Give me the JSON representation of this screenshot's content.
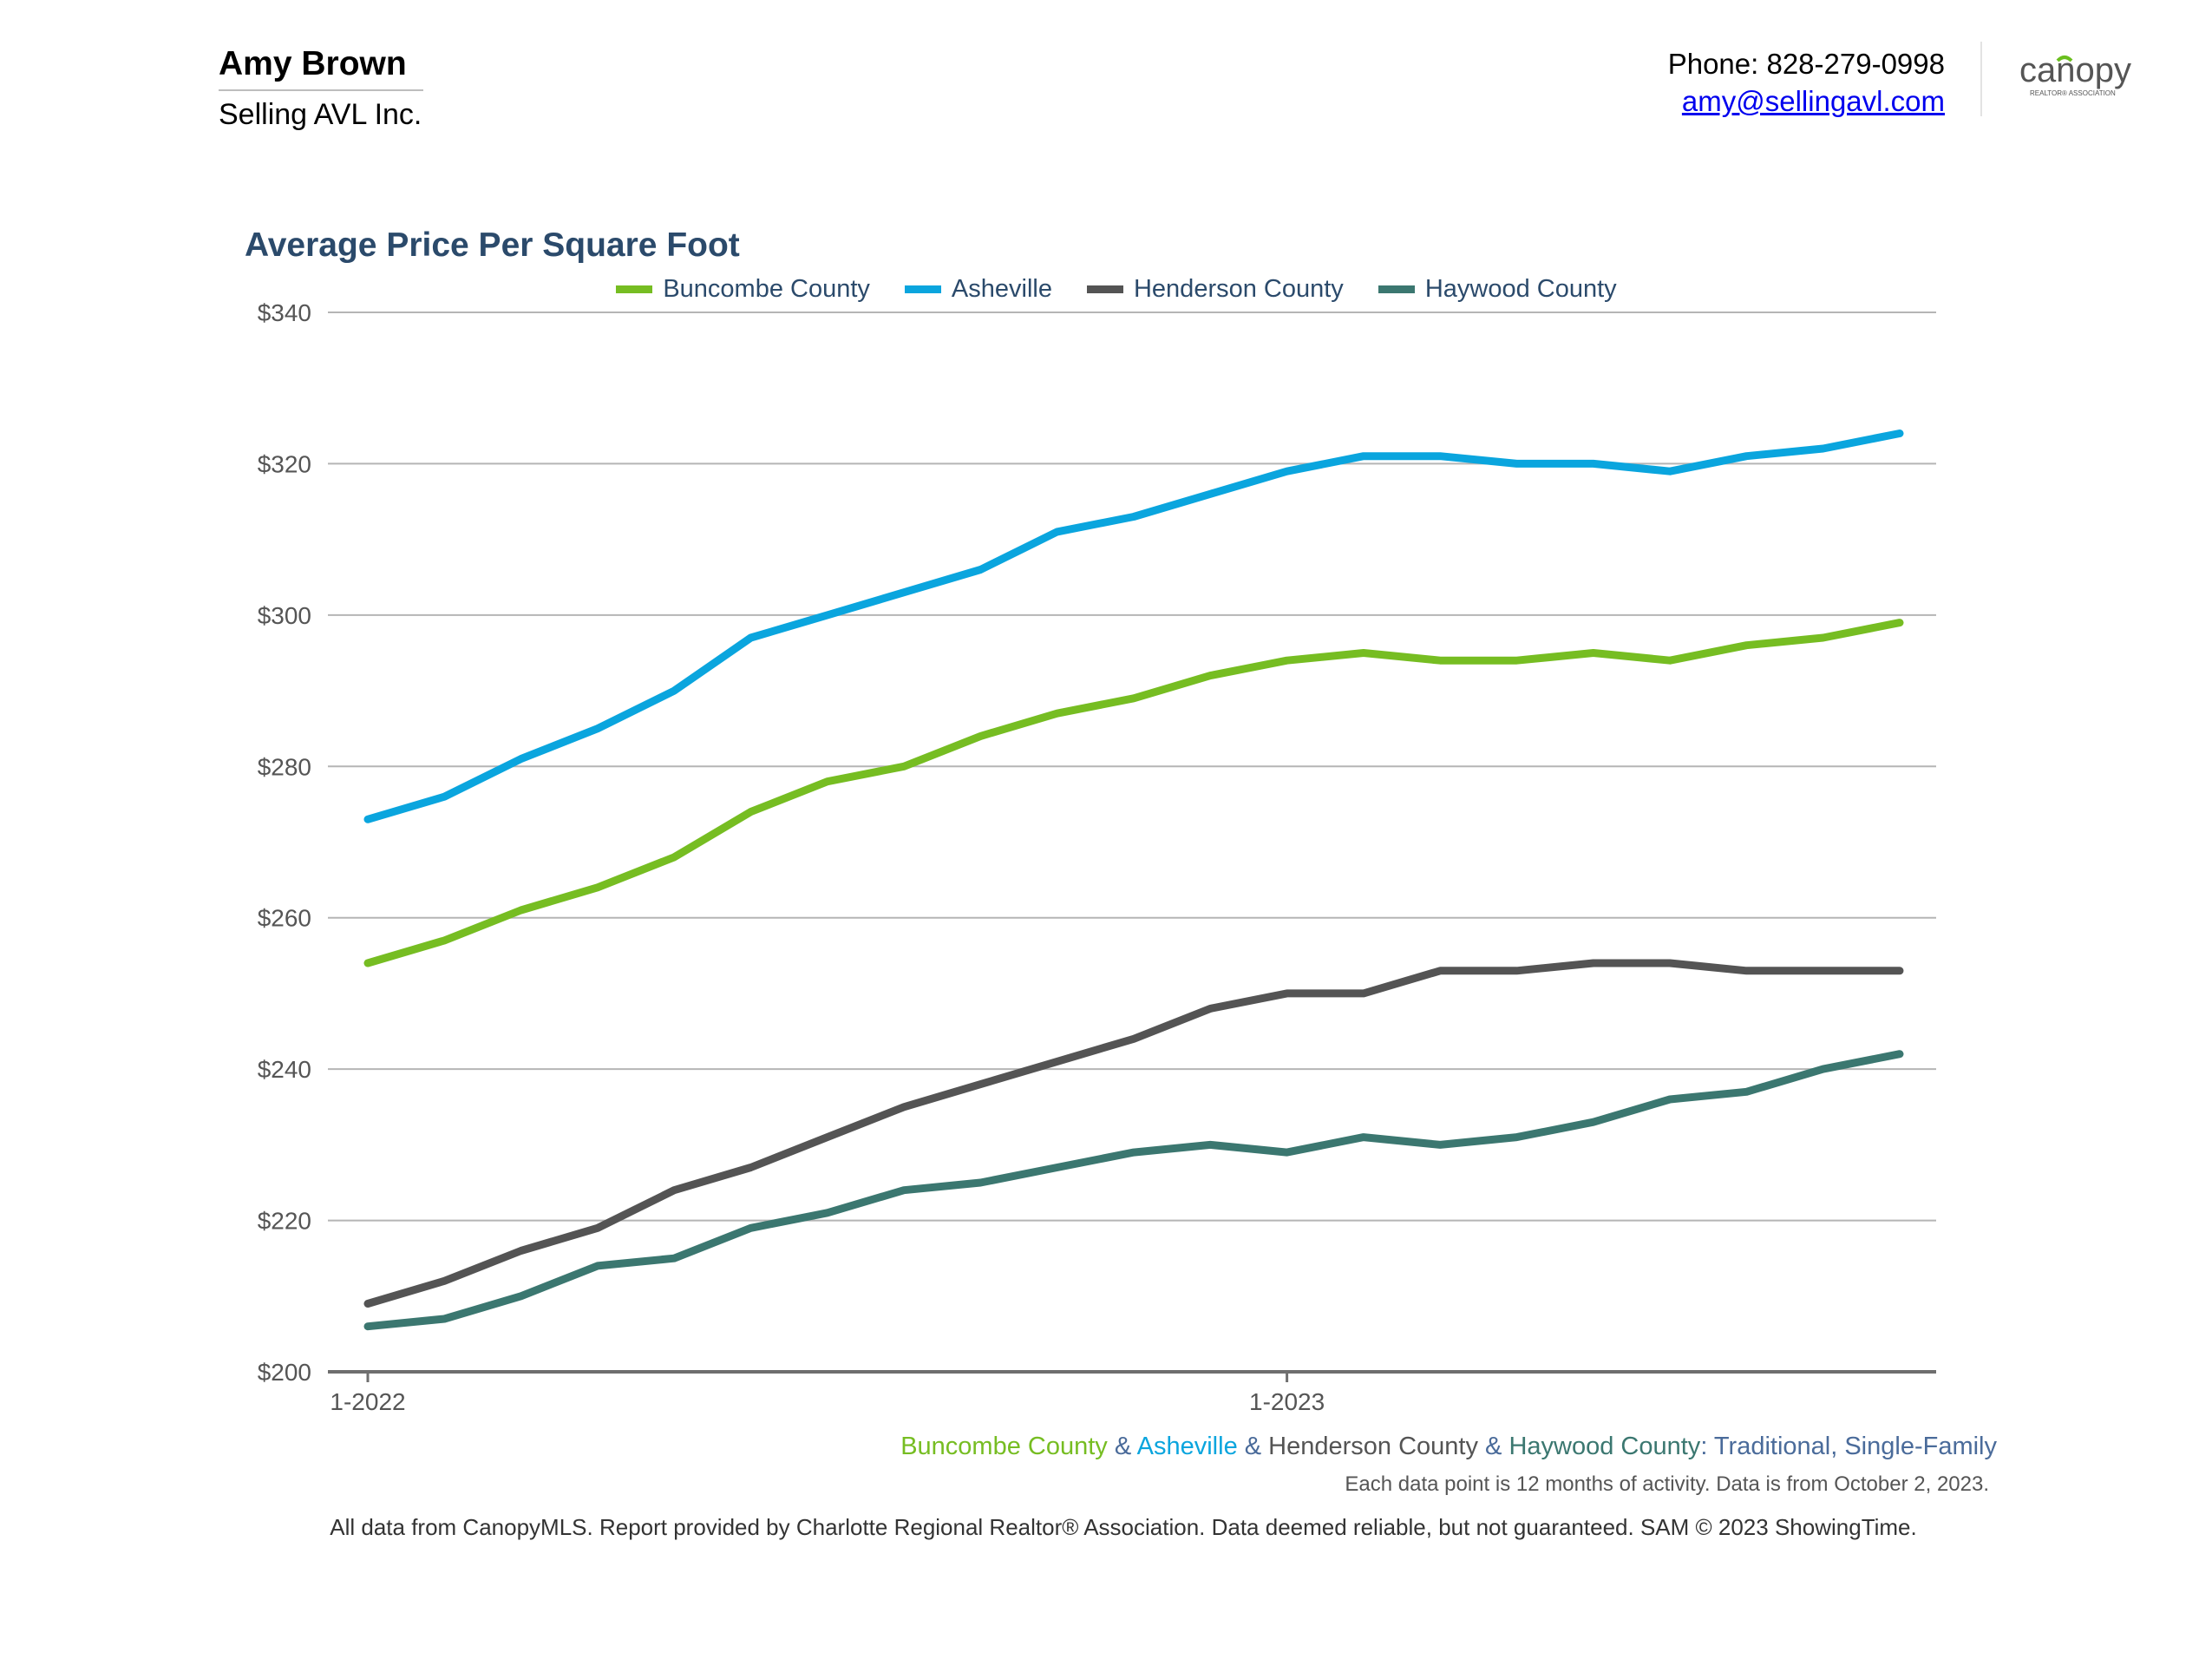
{
  "agent": {
    "name": "Amy Brown",
    "company": "Selling AVL Inc.",
    "phone": "Phone: 828-279-0998",
    "email": "amy@sellingavl.com"
  },
  "logo": {
    "text": "canopy",
    "tagline": "REALTOR® ASSOCIATION",
    "color": "#555555",
    "accent": "#6abf1e"
  },
  "colors": {
    "buncombe": "#76bd22",
    "asheville": "#0aa5de",
    "henderson": "#545454",
    "haywood": "#3b7770",
    "title": "#2b4a6b",
    "subtitle_suffix": "#4a6b9a"
  },
  "subtitle": {
    "parts": [
      {
        "text": "Buncombe County",
        "color": "#76bd22"
      },
      {
        "text": " & ",
        "color": "#4a6b9a"
      },
      {
        "text": "Asheville",
        "color": "#0aa5de"
      },
      {
        "text": " & ",
        "color": "#4a6b9a"
      },
      {
        "text": "Henderson County",
        "color": "#545454"
      },
      {
        "text": " & ",
        "color": "#4a6b9a"
      },
      {
        "text": "Haywood County",
        "color": "#3b7770"
      },
      {
        "text": ": Traditional, Single-Family",
        "color": "#4a6b9a"
      }
    ]
  },
  "note": "Each data point is 12 months of activity. Data is from October 2, 2023.",
  "footer": "All data from CanopyMLS. Report provided by Charlotte Regional Realtor® Association. Data deemed reliable, but not guaranteed. SAM © 2023 ShowingTime.",
  "chart_data": {
    "type": "line",
    "title": "Average Price Per Square Foot",
    "xlabel": "",
    "ylabel": "",
    "x": [
      "1-2022",
      "2-2022",
      "3-2022",
      "4-2022",
      "5-2022",
      "6-2022",
      "7-2022",
      "8-2022",
      "9-2022",
      "10-2022",
      "11-2022",
      "12-2022",
      "1-2023",
      "2-2023",
      "3-2023",
      "4-2023",
      "5-2023",
      "6-2023",
      "7-2023",
      "8-2023",
      "9-2023"
    ],
    "x_tick_labels": [
      "1-2022",
      "1-2023"
    ],
    "ylim": [
      200,
      340
    ],
    "y_ticks": [
      200,
      220,
      240,
      260,
      280,
      300,
      320,
      340
    ],
    "y_tick_labels": [
      "$200",
      "$220",
      "$240",
      "$260",
      "$280",
      "$300",
      "$320",
      "$340"
    ],
    "grid": true,
    "legend_position": "top-center",
    "series": [
      {
        "name": "Buncombe County",
        "color": "#76bd22",
        "values": [
          254,
          257,
          261,
          264,
          268,
          274,
          278,
          280,
          284,
          287,
          289,
          292,
          294,
          295,
          294,
          294,
          295,
          294,
          296,
          297,
          299
        ]
      },
      {
        "name": "Asheville",
        "color": "#0aa5de",
        "values": [
          273,
          276,
          281,
          285,
          290,
          297,
          300,
          303,
          306,
          311,
          313,
          316,
          319,
          321,
          321,
          320,
          320,
          319,
          321,
          322,
          324
        ]
      },
      {
        "name": "Henderson County",
        "color": "#545454",
        "values": [
          209,
          212,
          216,
          219,
          224,
          227,
          231,
          235,
          238,
          241,
          244,
          248,
          250,
          250,
          253,
          253,
          254,
          254,
          253,
          253,
          253
        ]
      },
      {
        "name": "Haywood County",
        "color": "#3b7770",
        "values": [
          206,
          207,
          210,
          214,
          215,
          219,
          221,
          224,
          225,
          227,
          229,
          230,
          229,
          231,
          230,
          231,
          233,
          236,
          237,
          240,
          242
        ]
      }
    ]
  }
}
